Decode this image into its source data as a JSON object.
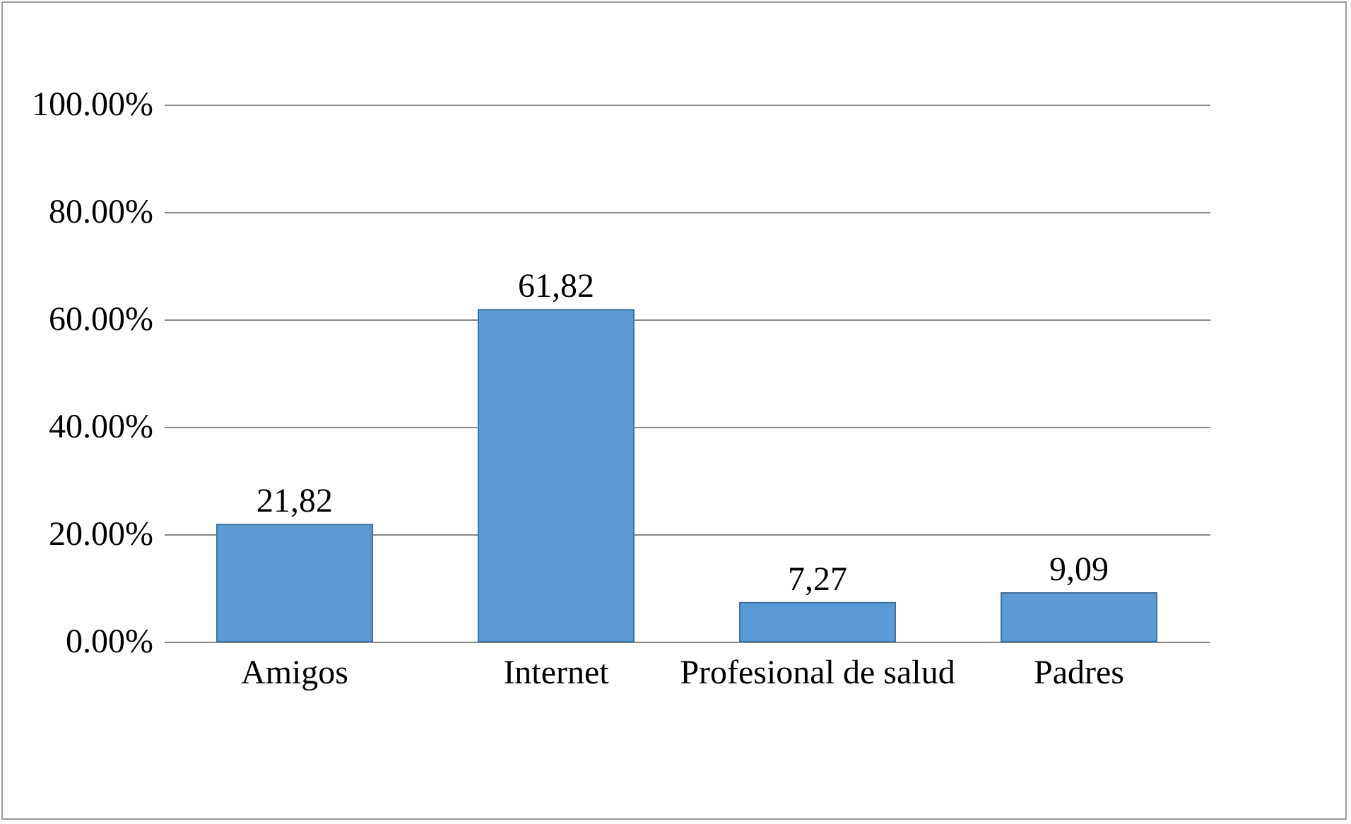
{
  "chart_data": {
    "type": "bar",
    "categories": [
      "Amigos",
      "Internet",
      "Profesional de salud",
      "Padres"
    ],
    "values": [
      21.82,
      61.82,
      7.27,
      9.09
    ],
    "value_labels": [
      "21,82",
      "61,82",
      "7,27",
      "9,09"
    ],
    "color": "#5b9bd5",
    "ylim": [
      0,
      100
    ],
    "yticks": [
      {
        "value": 0,
        "label": "0.00%"
      },
      {
        "value": 20,
        "label": "20.00%"
      },
      {
        "value": 40,
        "label": "40.00%"
      },
      {
        "value": 60,
        "label": "60.00%"
      },
      {
        "value": 80,
        "label": "80.00%"
      },
      {
        "value": 100,
        "label": "100.00%"
      }
    ],
    "grid": true
  }
}
